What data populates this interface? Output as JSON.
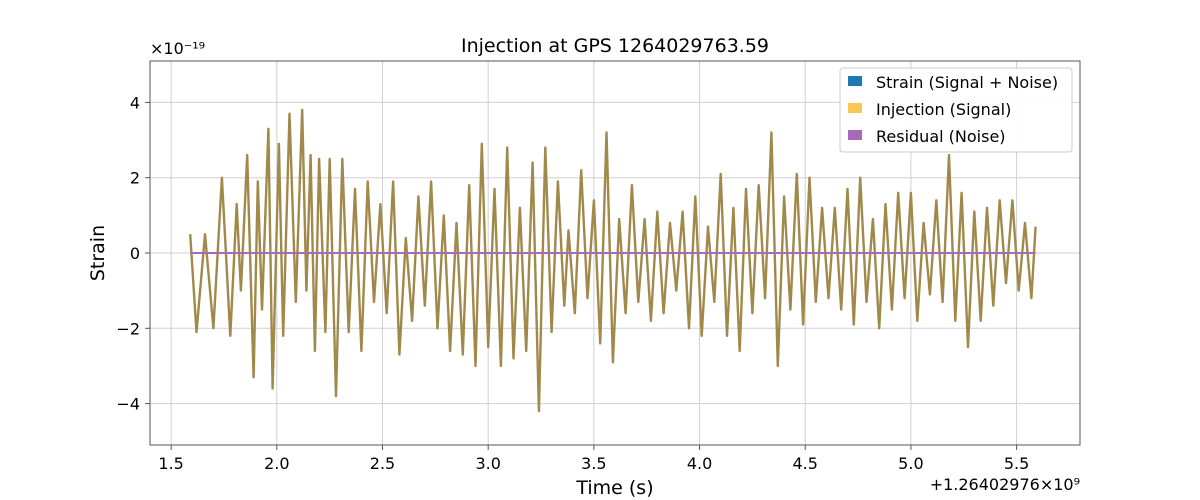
{
  "chart_data": {
    "type": "line",
    "title": "Injection at GPS 1264029763.59",
    "xlabel": "Time (s)",
    "ylabel": "Strain",
    "x_offset_label": "+1.26402976×10⁹",
    "y_exponent_label": "×10⁻¹⁹",
    "xlim": [
      1.4,
      5.8
    ],
    "ylim": [
      -5.1,
      5.1
    ],
    "y_scale_exponent": -19,
    "x_ticks": [
      1.5,
      2.0,
      2.5,
      3.0,
      3.5,
      4.0,
      4.5,
      5.0,
      5.5
    ],
    "x_tick_labels": [
      "1.5",
      "2.0",
      "2.5",
      "3.0",
      "3.5",
      "4.0",
      "4.5",
      "5.0",
      "5.5"
    ],
    "y_ticks": [
      -4,
      -2,
      0,
      2,
      4
    ],
    "y_tick_labels": [
      "−4",
      "−2",
      "0",
      "2",
      "4"
    ],
    "grid": true,
    "legend_position": "top-right",
    "series": [
      {
        "name": "Strain (Signal + Noise)",
        "color": "#1f77b4",
        "legend_color": "#1f77b4",
        "x": [
          1.59,
          1.62,
          1.66,
          1.7,
          1.74,
          1.78,
          1.81,
          1.83,
          1.86,
          1.89,
          1.91,
          1.93,
          1.96,
          1.98,
          2.01,
          2.03,
          2.06,
          2.09,
          2.12,
          2.14,
          2.16,
          2.18,
          2.2,
          2.23,
          2.25,
          2.28,
          2.31,
          2.34,
          2.37,
          2.4,
          2.43,
          2.46,
          2.49,
          2.52,
          2.55,
          2.58,
          2.61,
          2.64,
          2.67,
          2.7,
          2.73,
          2.76,
          2.79,
          2.82,
          2.85,
          2.88,
          2.91,
          2.94,
          2.97,
          3.0,
          3.03,
          3.06,
          3.09,
          3.12,
          3.15,
          3.18,
          3.21,
          3.24,
          3.27,
          3.3,
          3.33,
          3.36,
          3.38,
          3.41,
          3.44,
          3.47,
          3.5,
          3.53,
          3.56,
          3.59,
          3.62,
          3.65,
          3.68,
          3.71,
          3.74,
          3.77,
          3.8,
          3.83,
          3.86,
          3.89,
          3.92,
          3.95,
          3.98,
          4.01,
          4.04,
          4.07,
          4.1,
          4.13,
          4.16,
          4.19,
          4.22,
          4.25,
          4.28,
          4.31,
          4.34,
          4.37,
          4.4,
          4.43,
          4.46,
          4.49,
          4.52,
          4.55,
          4.58,
          4.61,
          4.64,
          4.67,
          4.7,
          4.73,
          4.76,
          4.79,
          4.82,
          4.85,
          4.88,
          4.91,
          4.94,
          4.97,
          5.0,
          5.03,
          5.06,
          5.09,
          5.12,
          5.15,
          5.18,
          5.21,
          5.24,
          5.27,
          5.3,
          5.33,
          5.36,
          5.39,
          5.42,
          5.45,
          5.48,
          5.51,
          5.54,
          5.57,
          5.59
        ],
        "y": [
          0.5,
          -2.1,
          0.5,
          -2.0,
          2.0,
          -2.2,
          1.3,
          -1.0,
          2.6,
          -3.3,
          1.9,
          -1.5,
          3.3,
          -3.6,
          2.9,
          -2.2,
          3.7,
          -1.3,
          3.8,
          -1.0,
          2.6,
          -2.6,
          2.5,
          -2.1,
          2.5,
          -3.8,
          2.5,
          -2.1,
          1.7,
          -2.6,
          1.9,
          -1.3,
          1.3,
          -1.6,
          1.9,
          -2.7,
          0.4,
          -1.8,
          1.5,
          -1.4,
          1.9,
          -2.0,
          1.0,
          -2.6,
          0.8,
          -2.7,
          1.8,
          -3.0,
          2.9,
          -2.5,
          1.7,
          -3.0,
          2.8,
          -2.8,
          1.2,
          -2.6,
          2.4,
          -4.2,
          2.8,
          -2.1,
          1.9,
          -1.4,
          0.6,
          -1.6,
          2.2,
          -1.2,
          1.4,
          -2.4,
          3.2,
          -2.9,
          0.9,
          -1.6,
          1.8,
          -1.3,
          0.9,
          -1.8,
          1.1,
          -1.6,
          0.8,
          -1.0,
          1.1,
          -2.0,
          1.5,
          -2.2,
          0.7,
          -1.3,
          2.1,
          -2.2,
          1.2,
          -2.6,
          1.7,
          -1.6,
          1.8,
          -1.2,
          3.2,
          -3.0,
          1.5,
          -1.5,
          2.1,
          -1.9,
          2.0,
          -1.3,
          1.2,
          -1.2,
          1.2,
          -1.5,
          1.7,
          -1.9,
          2.0,
          -1.3,
          0.9,
          -2.0,
          1.3,
          -1.5,
          1.6,
          -1.2,
          1.6,
          -1.8,
          0.8,
          -1.1,
          1.4,
          -1.3,
          2.6,
          -1.8,
          1.6,
          -2.5,
          1.1,
          -1.8,
          1.2,
          -1.4,
          1.4,
          -0.8,
          1.4,
          -1.0,
          0.8,
          -1.2,
          0.7
        ]
      },
      {
        "name": "Injection (Signal)",
        "color": "#a0894a",
        "legend_color": "#f7c856"
      },
      {
        "name": "Residual (Noise)",
        "color": "#a86ab8",
        "legend_color": "#a86ab8",
        "x": [
          1.59,
          5.59
        ],
        "y": [
          0,
          0
        ]
      }
    ]
  }
}
